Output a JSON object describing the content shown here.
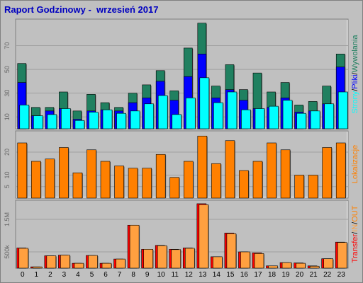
{
  "report_title": "Raport Godzinowy -  wrzesień 2017",
  "colors": {
    "wywolania": "#208060",
    "pliki": "#0000ff",
    "strony": "#00ffff",
    "lokalizacje": "#ff8000",
    "transfer_out": "#ff0000",
    "transfer_in": "#ffa040",
    "background": "#c0c0c0",
    "plot_bg": "#c0c0c0"
  },
  "chart_data": [
    {
      "type": "bar",
      "id": "hits",
      "categories": [
        "0",
        "1",
        "2",
        "3",
        "4",
        "5",
        "6",
        "7",
        "8",
        "9",
        "10",
        "11",
        "12",
        "13",
        "14",
        "15",
        "16",
        "17",
        "18",
        "19",
        "20",
        "21",
        "22",
        "23"
      ],
      "series": [
        {
          "name": "Wywołania",
          "values": [
            55,
            18,
            18,
            31,
            15,
            29,
            22,
            18,
            30,
            37,
            49,
            32,
            68,
            89,
            36,
            54,
            33,
            47,
            31,
            39,
            20,
            23,
            36,
            63
          ]
        },
        {
          "name": "Pliki",
          "values": [
            39,
            11,
            15,
            17,
            8,
            15,
            16,
            15,
            22,
            26,
            40,
            24,
            44,
            63,
            26,
            33,
            24,
            17,
            18,
            26,
            14,
            15,
            21,
            52
          ]
        },
        {
          "name": "Strony",
          "values": [
            20,
            11,
            12,
            17,
            7,
            14,
            16,
            13,
            15,
            21,
            28,
            12,
            26,
            43,
            22,
            31,
            16,
            17,
            19,
            24,
            13,
            15,
            21,
            31
          ]
        }
      ],
      "yticks": [
        "10",
        "30",
        "50",
        "70"
      ],
      "ylim": [
        0,
        90
      ],
      "side_label": [
        "Strony",
        "Pliki",
        "Wywolania"
      ]
    },
    {
      "type": "bar",
      "id": "sites",
      "categories": [
        "0",
        "1",
        "2",
        "3",
        "4",
        "5",
        "6",
        "7",
        "8",
        "9",
        "10",
        "11",
        "12",
        "13",
        "14",
        "15",
        "16",
        "17",
        "18",
        "19",
        "20",
        "21",
        "22",
        "23"
      ],
      "series": [
        {
          "name": "Lokalizacje",
          "values": [
            24,
            16,
            17,
            22,
            11,
            21,
            16,
            14,
            13,
            13,
            19,
            9,
            16,
            27,
            15,
            25,
            12,
            16,
            24,
            21,
            10,
            10,
            22,
            24
          ]
        }
      ],
      "yticks": [
        "5",
        "10",
        "20"
      ],
      "ylim": [
        0,
        28
      ],
      "side_label": [
        "Lokalizacje"
      ]
    },
    {
      "type": "bar",
      "id": "transfer",
      "categories": [
        "0",
        "1",
        "2",
        "3",
        "4",
        "5",
        "6",
        "7",
        "8",
        "9",
        "10",
        "11",
        "12",
        "13",
        "14",
        "15",
        "16",
        "17",
        "18",
        "19",
        "20",
        "21",
        "22",
        "23"
      ],
      "series": [
        {
          "name": "OUT",
          "values": [
            620000,
            40000,
            380000,
            400000,
            150000,
            390000,
            150000,
            280000,
            1320000,
            580000,
            700000,
            580000,
            620000,
            1980000,
            350000,
            1080000,
            500000,
            470000,
            70000,
            170000,
            160000,
            70000,
            290000,
            800000
          ]
        },
        {
          "name": "IN",
          "values": [
            610000,
            40000,
            380000,
            400000,
            150000,
            390000,
            150000,
            280000,
            1320000,
            580000,
            690000,
            570000,
            610000,
            1950000,
            350000,
            1060000,
            500000,
            450000,
            70000,
            170000,
            150000,
            60000,
            290000,
            790000
          ]
        }
      ],
      "yticks": [
        "500k",
        "1.5M"
      ],
      "ylim": [
        0,
        2000000
      ],
      "side_label": [
        "Transfer",
        "IN",
        "OUT"
      ]
    }
  ]
}
